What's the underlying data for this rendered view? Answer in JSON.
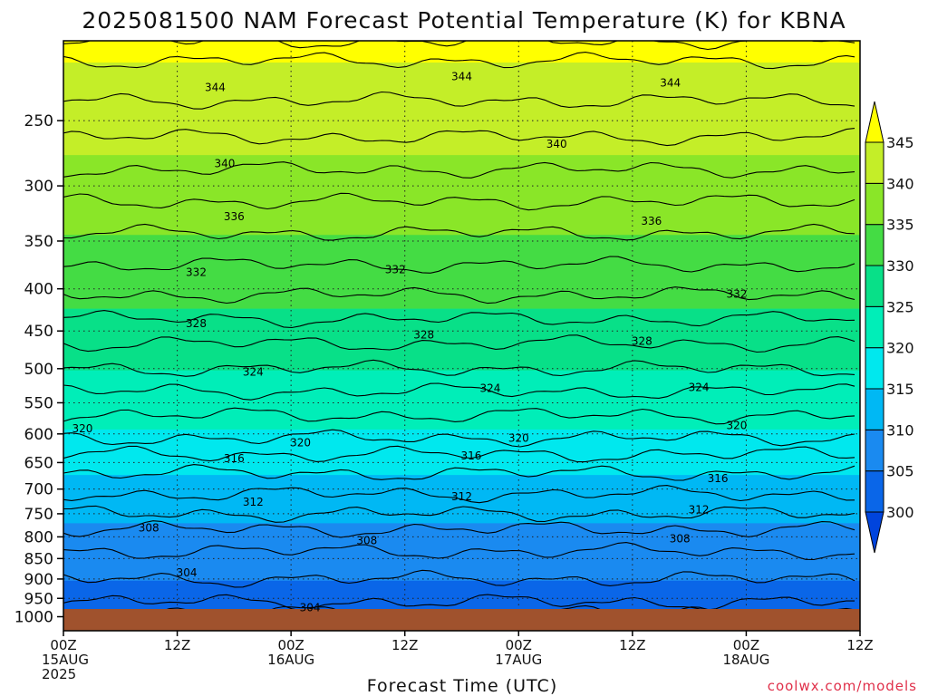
{
  "chart_data": {
    "type": "heatmap",
    "title": "2025081500 NAM Forecast Potential Temperature (K) for KBNA",
    "xlabel": "Forecast Time (UTC)",
    "ylabel": "",
    "credit": "coolwx.com/models",
    "x_range_hours": [
      0,
      84
    ],
    "x_ticks": [
      {
        "hour": 0,
        "lines": [
          "00Z",
          "15AUG",
          "2025"
        ]
      },
      {
        "hour": 12,
        "lines": [
          "12Z"
        ]
      },
      {
        "hour": 24,
        "lines": [
          "00Z",
          "16AUG"
        ]
      },
      {
        "hour": 36,
        "lines": [
          "12Z"
        ]
      },
      {
        "hour": 48,
        "lines": [
          "00Z",
          "17AUG"
        ]
      },
      {
        "hour": 60,
        "lines": [
          "12Z"
        ]
      },
      {
        "hour": 72,
        "lines": [
          "00Z",
          "18AUG"
        ]
      },
      {
        "hour": 84,
        "lines": [
          "12Z"
        ]
      }
    ],
    "y_ticks": [
      "250",
      "300",
      "350",
      "400",
      "450",
      "500",
      "550",
      "600",
      "650",
      "700",
      "750",
      "800",
      "850",
      "900",
      "950",
      "1000"
    ],
    "y_range_hpa": [
      200,
      1040
    ],
    "y_scale": "log",
    "grid": true,
    "colorbar": {
      "ticks": [
        "300",
        "305",
        "310",
        "315",
        "320",
        "325",
        "330",
        "335",
        "340",
        "345"
      ],
      "colors": [
        "#0044dd",
        "#0a66e8",
        "#1a8af0",
        "#00b8f4",
        "#00e8ee",
        "#00eeb8",
        "#08e088",
        "#44dc44",
        "#8ae628",
        "#c4ee28",
        "#ffff00"
      ]
    },
    "theta_bands": [
      {
        "level_hpa": 1000,
        "theta": 300
      },
      {
        "level_hpa": 980,
        "theta": 302
      },
      {
        "level_hpa": 950,
        "theta": 303.5
      },
      {
        "level_hpa": 900,
        "theta": 305
      },
      {
        "level_hpa": 850,
        "theta": 306.5
      },
      {
        "level_hpa": 800,
        "theta": 308
      },
      {
        "level_hpa": 750,
        "theta": 311
      },
      {
        "level_hpa": 700,
        "theta": 313.5
      },
      {
        "level_hpa": 650,
        "theta": 316
      },
      {
        "level_hpa": 600,
        "theta": 319.5
      },
      {
        "level_hpa": 550,
        "theta": 322
      },
      {
        "level_hpa": 500,
        "theta": 325
      },
      {
        "level_hpa": 450,
        "theta": 328
      },
      {
        "level_hpa": 400,
        "theta": 331.5
      },
      {
        "level_hpa": 350,
        "theta": 334.5
      },
      {
        "level_hpa": 300,
        "theta": 338
      },
      {
        "level_hpa": 250,
        "theta": 342
      },
      {
        "level_hpa": 200,
        "theta": 346
      }
    ],
    "contour_labels": [
      {
        "text": "344",
        "hour": 16,
        "level_hpa": 228
      },
      {
        "text": "344",
        "hour": 42,
        "level_hpa": 221
      },
      {
        "text": "344",
        "hour": 64,
        "level_hpa": 225
      },
      {
        "text": "340",
        "hour": 17,
        "level_hpa": 282
      },
      {
        "text": "340",
        "hour": 52,
        "level_hpa": 267
      },
      {
        "text": "336",
        "hour": 18,
        "level_hpa": 327
      },
      {
        "text": "336",
        "hour": 62,
        "level_hpa": 331
      },
      {
        "text": "332",
        "hour": 14,
        "level_hpa": 382
      },
      {
        "text": "332",
        "hour": 35,
        "level_hpa": 379
      },
      {
        "text": "332",
        "hour": 71,
        "level_hpa": 406
      },
      {
        "text": "328",
        "hour": 14,
        "level_hpa": 441
      },
      {
        "text": "328",
        "hour": 38,
        "level_hpa": 455
      },
      {
        "text": "328",
        "hour": 61,
        "level_hpa": 463
      },
      {
        "text": "324",
        "hour": 20,
        "level_hpa": 505
      },
      {
        "text": "324",
        "hour": 45,
        "level_hpa": 528
      },
      {
        "text": "324",
        "hour": 67,
        "level_hpa": 527
      },
      {
        "text": "320",
        "hour": 2,
        "level_hpa": 591
      },
      {
        "text": "320",
        "hour": 25,
        "level_hpa": 615
      },
      {
        "text": "320",
        "hour": 48,
        "level_hpa": 607
      },
      {
        "text": "320",
        "hour": 71,
        "level_hpa": 586
      },
      {
        "text": "316",
        "hour": 18,
        "level_hpa": 643
      },
      {
        "text": "316",
        "hour": 43,
        "level_hpa": 638
      },
      {
        "text": "316",
        "hour": 69,
        "level_hpa": 680
      },
      {
        "text": "312",
        "hour": 20,
        "level_hpa": 726
      },
      {
        "text": "312",
        "hour": 42,
        "level_hpa": 715
      },
      {
        "text": "312",
        "hour": 67,
        "level_hpa": 742
      },
      {
        "text": "308",
        "hour": 9,
        "level_hpa": 780
      },
      {
        "text": "308",
        "hour": 32,
        "level_hpa": 808
      },
      {
        "text": "308",
        "hour": 65,
        "level_hpa": 804
      },
      {
        "text": "304",
        "hour": 13,
        "level_hpa": 884
      },
      {
        "text": "304",
        "hour": 26,
        "level_hpa": 975
      }
    ]
  }
}
